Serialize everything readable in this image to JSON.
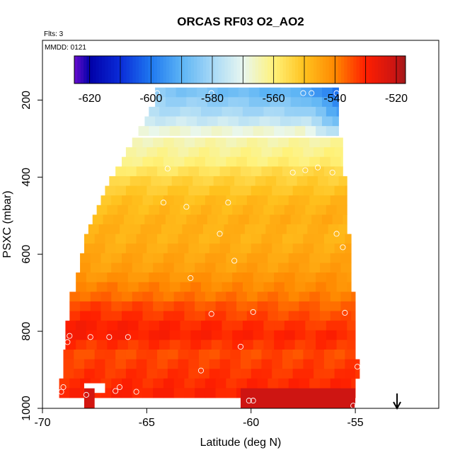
{
  "chart_data": {
    "type": "heatmap",
    "title": "ORCAS RF03 O2_AO2",
    "top_left_note": "Flts: 3",
    "frame_note": "MMDD: 0121",
    "xlabel": "Latitude (deg N)",
    "ylabel": "PSXC (mbar)",
    "xlim": [
      -70,
      -51
    ],
    "ylim": [
      1000,
      45
    ],
    "x_ticks": [
      -70,
      -65,
      -60,
      -55
    ],
    "x_tick_labels": [
      "-70",
      "-65",
      "-60",
      "-55"
    ],
    "y_ticks": [
      200,
      400,
      600,
      800,
      1000
    ],
    "y_tick_labels": [
      "200",
      "400",
      "600",
      "800",
      "1000"
    ],
    "colorbar": {
      "range": [
        -625,
        -517
      ],
      "ticks": [
        -620,
        -600,
        -580,
        -560,
        -540,
        -520
      ],
      "tick_labels": [
        "-620",
        "-600",
        "-580",
        "-560",
        "-540",
        "-520"
      ],
      "levels": [
        -625,
        -620,
        -610,
        -600,
        -590,
        -580,
        -570,
        -560,
        -550,
        -540,
        -530,
        -520,
        -517
      ],
      "colors": [
        "#6A0DCE",
        "#0000A8",
        "#0A2BD8",
        "#1E78F0",
        "#5CB4F5",
        "#A6D8F6",
        "#E8F7F0",
        "#FFF27A",
        "#FFC21E",
        "#FF8800",
        "#FF1E00",
        "#C81414",
        "#9E1A1A"
      ]
    },
    "rows": [
      {
        "p": 180,
        "lat_start": -64.6,
        "lat_end": -55.8,
        "base": -588,
        "grad": -4
      },
      {
        "p": 205,
        "lat_start": -64.6,
        "lat_end": -55.8,
        "base": -584,
        "grad": -3
      },
      {
        "p": 230,
        "lat_start": -64.9,
        "lat_end": -55.8,
        "base": -580,
        "grad": -2
      },
      {
        "p": 255,
        "lat_start": -65.1,
        "lat_end": -55.8,
        "base": -575,
        "grad": -1
      },
      {
        "p": 280,
        "lat_start": -65.4,
        "lat_end": -55.8,
        "base": -568,
        "grad": 0
      },
      {
        "p": 310,
        "lat_start": -65.7,
        "lat_end": -55.6,
        "base": -564,
        "grad": 1
      },
      {
        "p": 335,
        "lat_start": -66.0,
        "lat_end": -55.6,
        "base": -562,
        "grad": 1
      },
      {
        "p": 360,
        "lat_start": -66.2,
        "lat_end": -55.6,
        "base": -560,
        "grad": 1
      },
      {
        "p": 385,
        "lat_start": -66.5,
        "lat_end": -55.6,
        "base": -556,
        "grad": 2
      },
      {
        "p": 410,
        "lat_start": -66.8,
        "lat_end": -55.4,
        "base": -553,
        "grad": 1
      },
      {
        "p": 435,
        "lat_start": -67.0,
        "lat_end": -55.4,
        "base": -551,
        "grad": 1
      },
      {
        "p": 460,
        "lat_start": -67.2,
        "lat_end": -55.4,
        "base": -549,
        "grad": 1
      },
      {
        "p": 485,
        "lat_start": -67.4,
        "lat_end": -55.4,
        "base": -548,
        "grad": 1
      },
      {
        "p": 510,
        "lat_start": -67.6,
        "lat_end": -55.4,
        "base": -547,
        "grad": 1
      },
      {
        "p": 535,
        "lat_start": -67.8,
        "lat_end": -55.4,
        "base": -547,
        "grad": 0
      },
      {
        "p": 560,
        "lat_start": -68.0,
        "lat_end": -55.2,
        "base": -547,
        "grad": 0
      },
      {
        "p": 585,
        "lat_start": -68.0,
        "lat_end": -55.2,
        "base": -546,
        "grad": 0
      },
      {
        "p": 610,
        "lat_start": -68.2,
        "lat_end": -55.2,
        "base": -545,
        "grad": 0
      },
      {
        "p": 635,
        "lat_start": -68.2,
        "lat_end": -55.2,
        "base": -544,
        "grad": 0
      },
      {
        "p": 660,
        "lat_start": -68.4,
        "lat_end": -55.2,
        "base": -542,
        "grad": 0
      },
      {
        "p": 685,
        "lat_start": -68.4,
        "lat_end": -55.2,
        "base": -540,
        "grad": -1
      },
      {
        "p": 710,
        "lat_start": -68.7,
        "lat_end": -55.0,
        "base": -538,
        "grad": -1
      },
      {
        "p": 735,
        "lat_start": -68.7,
        "lat_end": -55.0,
        "base": -535,
        "grad": -2
      },
      {
        "p": 760,
        "lat_start": -68.7,
        "lat_end": -55.0,
        "base": -533,
        "grad": -2
      },
      {
        "p": 785,
        "lat_start": -68.9,
        "lat_end": -55.0,
        "base": -531,
        "grad": -2
      },
      {
        "p": 810,
        "lat_start": -68.9,
        "lat_end": -55.0,
        "base": -530,
        "grad": -1
      },
      {
        "p": 835,
        "lat_start": -68.9,
        "lat_end": -55.0,
        "base": -532,
        "grad": 0
      },
      {
        "p": 860,
        "lat_start": -69.0,
        "lat_end": -55.0,
        "base": -534,
        "grad": 0
      },
      {
        "p": 885,
        "lat_start": -69.0,
        "lat_end": -54.8,
        "base": -533,
        "grad": 0
      },
      {
        "p": 910,
        "lat_start": -69.0,
        "lat_end": -54.8,
        "base": -532,
        "grad": 0
      },
      {
        "p": 935,
        "lat_start": -69.2,
        "lat_end": -55.0,
        "base": -531,
        "grad": 0
      },
      {
        "p": 960,
        "lat_start": -69.2,
        "lat_end": -55.0,
        "base": -530,
        "grad": 0
      }
    ],
    "bottom_patches": [
      {
        "lat_start": -68.0,
        "lat_end": -67.5,
        "p_top": 948,
        "p_bottom": 1000,
        "value": -522
      },
      {
        "lat_start": -60.5,
        "lat_end": -55.0,
        "p_top": 948,
        "p_bottom": 1000,
        "value": -521
      }
    ],
    "bottom_gap": {
      "lat_start": -68.0,
      "lat_end": -67.0,
      "p_top": 935,
      "p_bottom": 960
    },
    "markers": [
      [
        -64.5,
        182
      ],
      [
        -61.9,
        182
      ],
      [
        -57.5,
        182
      ],
      [
        -57.1,
        182
      ],
      [
        -55.9,
        182
      ],
      [
        -64.0,
        378
      ],
      [
        -58.0,
        388
      ],
      [
        -57.4,
        382
      ],
      [
        -56.8,
        375
      ],
      [
        -56.1,
        388
      ],
      [
        -64.2,
        466
      ],
      [
        -63.1,
        477
      ],
      [
        -61.1,
        466
      ],
      [
        -61.5,
        547
      ],
      [
        -55.9,
        547
      ],
      [
        -55.6,
        582
      ],
      [
        -60.8,
        617
      ],
      [
        -62.9,
        662
      ],
      [
        -68.9,
        735
      ],
      [
        -61.9,
        755
      ],
      [
        -59.9,
        750
      ],
      [
        -55.5,
        752
      ],
      [
        -68.7,
        812
      ],
      [
        -67.7,
        815
      ],
      [
        -66.8,
        815
      ],
      [
        -65.9,
        815
      ],
      [
        -68.8,
        828
      ],
      [
        -60.5,
        840
      ],
      [
        -62.4,
        902
      ],
      [
        -54.9,
        892
      ],
      [
        -69.0,
        945
      ],
      [
        -67.3,
        945
      ],
      [
        -66.3,
        945
      ],
      [
        -69.1,
        957
      ],
      [
        -67.9,
        965
      ],
      [
        -66.5,
        955
      ],
      [
        -65.5,
        957
      ],
      [
        -60.1,
        980
      ],
      [
        -59.9,
        980
      ],
      [
        -55.1,
        993
      ],
      [
        -54.9,
        993
      ]
    ],
    "arrow": {
      "x": -53.0
    }
  }
}
